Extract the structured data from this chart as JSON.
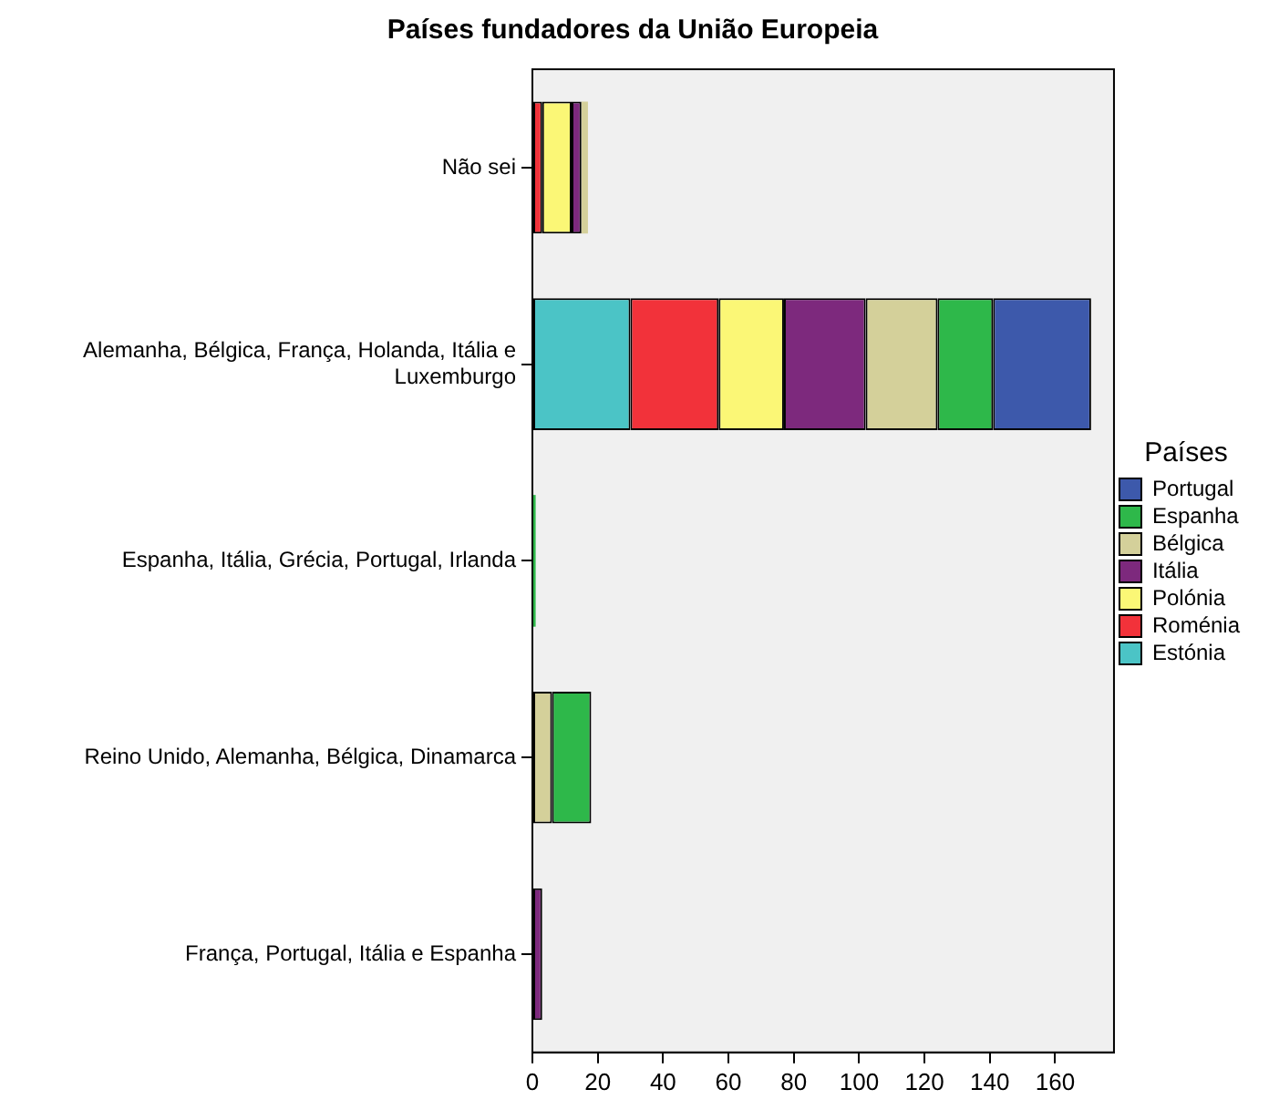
{
  "chart_data": {
    "type": "bar",
    "orientation": "horizontal",
    "stacked": true,
    "title": "Países fundadores da União Europeia",
    "legend_title": "Países",
    "legend": "right",
    "categories": [
      "Não sei",
      "Alemanha, Bélgica, França, Holanda, Itália e Luxemburgo",
      "Espanha, Itália, Grécia, Portugal, Irlanda",
      "Reino Unido, Alemanha, Bélgica, Dinamarca",
      "França, Portugal, Itália e Espanha"
    ],
    "series": [
      {
        "name": "Estónia",
        "color": "#4bc4c6",
        "values": [
          null,
          30,
          null,
          null,
          null
        ]
      },
      {
        "name": "Roménia",
        "color": "#f2323a",
        "values": [
          3,
          27,
          null,
          null,
          null
        ]
      },
      {
        "name": "Polónia",
        "color": "#fbf776",
        "values": [
          9,
          20,
          null,
          null,
          null
        ]
      },
      {
        "name": "Itália",
        "color": "#7d297d",
        "values": [
          3,
          25,
          null,
          null,
          3
        ]
      },
      {
        "name": "Bélgica",
        "color": "#d4d09a",
        "values": [
          2,
          22,
          null,
          6,
          null
        ]
      },
      {
        "name": "Espanha",
        "color": "#2eb84a",
        "values": [
          null,
          17,
          1,
          12,
          null
        ]
      },
      {
        "name": "Portugal",
        "color": "#3d59ab",
        "values": [
          null,
          30,
          null,
          null,
          null
        ]
      }
    ],
    "xlim": [
      0,
      178
    ],
    "xticks": [
      0,
      20,
      40,
      60,
      80,
      100,
      120,
      140,
      160
    ],
    "grid": false
  }
}
